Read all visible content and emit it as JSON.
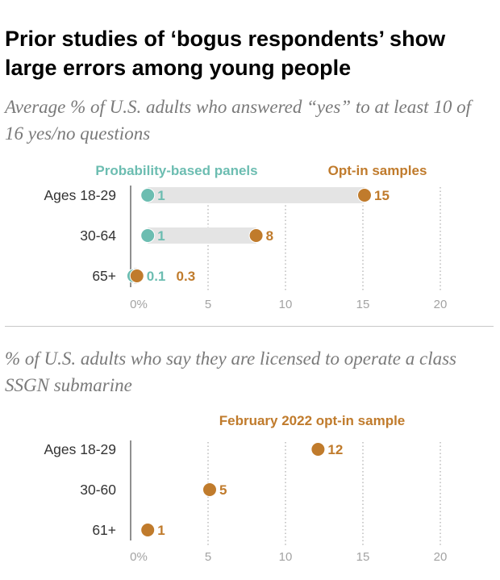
{
  "title": "Prior studies of ‘bogus respondents’ show large errors among young people",
  "colors": {
    "teal": "#6cbdb1",
    "orange": "#c07b2c",
    "bar": "#e4e4e4",
    "axis": "#555555",
    "grid": "#9a9a9a",
    "tick": "#a3a3a3",
    "label": "#333333"
  },
  "chart_data": [
    {
      "type": "dot",
      "subtitle": "Average % of U.S. adults who answered “yes” to at least 10 of 16 yes/no questions",
      "legend": [
        "Probability-based panels",
        "Opt-in samples"
      ],
      "categories": [
        "Ages 18-29",
        "30-64",
        "65+"
      ],
      "series": [
        {
          "name": "Probability-based panels",
          "values": [
            1,
            1,
            0.1
          ],
          "labels": [
            "1",
            "1",
            "0.1"
          ]
        },
        {
          "name": "Opt-in samples",
          "values": [
            15,
            8,
            0.3
          ],
          "labels": [
            "15",
            "8",
            "0.3"
          ]
        }
      ],
      "xlim": [
        0,
        20
      ],
      "ticks": [
        0,
        5,
        10,
        15,
        20
      ],
      "tick_labels": [
        "0%",
        "5",
        "10",
        "15",
        "20"
      ],
      "grid": true
    },
    {
      "type": "dot",
      "subtitle": "% of U.S. adults who say they are licensed to operate a class SSGN submarine",
      "legend": [
        "February 2022 opt-in sample"
      ],
      "categories": [
        "Ages 18-29",
        "30-60",
        "61+"
      ],
      "series": [
        {
          "name": "February 2022 opt-in sample",
          "values": [
            12,
            5,
            1
          ],
          "labels": [
            "12",
            "5",
            "1"
          ]
        }
      ],
      "xlim": [
        0,
        20
      ],
      "ticks": [
        0,
        5,
        10,
        15,
        20
      ],
      "tick_labels": [
        "0%",
        "5",
        "10",
        "15",
        "20"
      ],
      "grid": true
    }
  ]
}
